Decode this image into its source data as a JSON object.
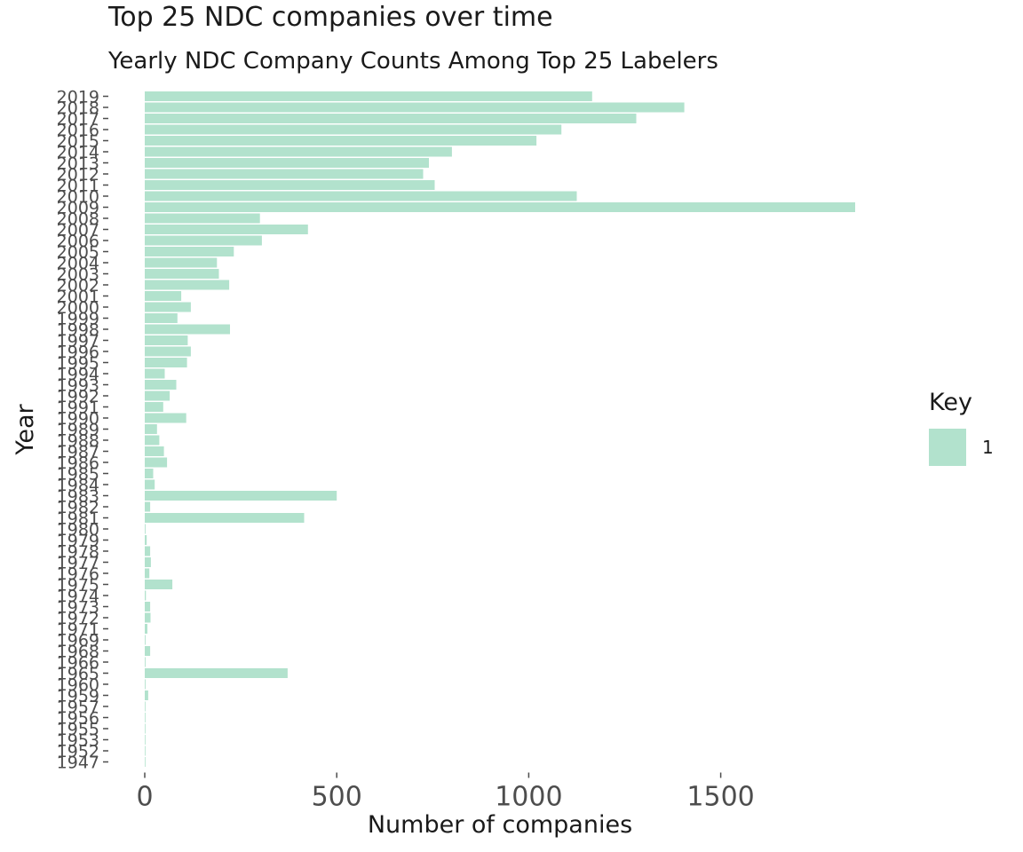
{
  "chart_data": {
    "type": "bar",
    "orientation": "horizontal",
    "title": "Top 25 NDC companies over time",
    "subtitle": "Yearly NDC Company Counts Among Top 25 Labelers",
    "xlabel": "Number of companies",
    "ylabel": "Year",
    "xlim": [
      0,
      1850
    ],
    "xticks": [
      0,
      500,
      1000,
      1500
    ],
    "grid": false,
    "legend": {
      "title": "Key",
      "placement": "right",
      "entries": [
        "1"
      ]
    },
    "bar_color": "#b2e2cd",
    "categories": [
      "2019",
      "2018",
      "2017",
      "2016",
      "2015",
      "2014",
      "2013",
      "2012",
      "2011",
      "2010",
      "2009",
      "2008",
      "2007",
      "2006",
      "2005",
      "2004",
      "2003",
      "2002",
      "2001",
      "2000",
      "1999",
      "1998",
      "1997",
      "1996",
      "1995",
      "1994",
      "1993",
      "1992",
      "1991",
      "1990",
      "1989",
      "1988",
      "1987",
      "1986",
      "1985",
      "1984",
      "1983",
      "1982",
      "1981",
      "1980",
      "1979",
      "1978",
      "1977",
      "1976",
      "1975",
      "1974",
      "1973",
      "1972",
      "1971",
      "1969",
      "1968",
      "1966",
      "1965",
      "1960",
      "1959",
      "1957",
      "1956",
      "1955",
      "1953",
      "1952",
      "1947"
    ],
    "series": [
      {
        "name": "1",
        "values": [
          1165,
          1405,
          1280,
          1085,
          1020,
          800,
          740,
          725,
          755,
          1125,
          1850,
          300,
          425,
          305,
          232,
          188,
          193,
          220,
          95,
          120,
          85,
          222,
          112,
          120,
          110,
          52,
          82,
          65,
          48,
          108,
          32,
          38,
          50,
          58,
          22,
          26,
          500,
          14,
          415,
          2,
          5,
          14,
          16,
          12,
          72,
          3,
          14,
          15,
          7,
          2,
          14,
          2,
          372,
          2,
          9,
          1,
          1,
          1,
          1,
          1,
          1
        ]
      }
    ]
  }
}
